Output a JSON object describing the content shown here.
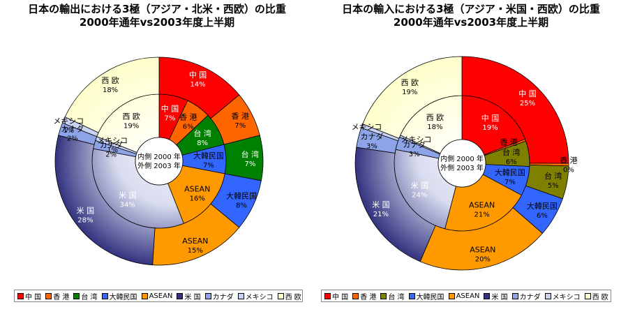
{
  "chart_data": [
    {
      "type": "pie",
      "title": "日本の輸出における3極（アジア・北米・西欧）の比重",
      "subtitle": "2000年通年vs2003年度上半期",
      "center_label": [
        "内側 2000 年",
        "外側 2003 年"
      ],
      "categories": [
        "中 国",
        "香 港",
        "台 湾",
        "大韓民国",
        "ASEAN",
        "米 国",
        "カナダ",
        "メキシコ",
        "西 欧"
      ],
      "colors": [
        "#ff0000",
        "#ff6600",
        "#008000",
        "#3366ff",
        "#ff9900",
        "#333380",
        "#8ea4e8",
        "#c9d2f3",
        "#ffffcc"
      ],
      "series": [
        {
          "name": "2000 年",
          "ring": "inner",
          "values": [
            7,
            6,
            8,
            7,
            16,
            34,
            2,
            1,
            19
          ],
          "labels": [
            "7%",
            "6%",
            "8%",
            "7%",
            "16%",
            "34%",
            "2%",
            "1%",
            "19%"
          ]
        },
        {
          "name": "2003 年",
          "ring": "outer",
          "values": [
            14,
            7,
            7,
            8,
            15,
            28,
            2,
            1,
            18
          ],
          "labels": [
            "14%",
            "7%",
            "7%",
            "8%",
            "15%",
            "28%",
            "2%",
            "1%",
            "18%"
          ]
        }
      ],
      "legend": {
        "entries": [
          "中 国",
          "香 港",
          "台 湾",
          "大韓民国",
          "ASEAN",
          "米 国",
          "カナダ",
          "メキシコ",
          "西 欧"
        ],
        "position": "bottom"
      }
    },
    {
      "type": "pie",
      "title": "日本の輸入における3極（アジア・米国・西欧）の比重",
      "subtitle": "2000年通年vs2003年度上半期",
      "center_label": [
        "内側 2000 年",
        "外側 2003 年"
      ],
      "categories": [
        "中 国",
        "香 港",
        "台 湾",
        "大韓民国",
        "ASEAN",
        "米 国",
        "カナダ",
        "メキシコ",
        "西 欧"
      ],
      "colors": [
        "#ff0000",
        "#ff6600",
        "#808000",
        "#3366ff",
        "#ff9900",
        "#333380",
        "#8ea4e8",
        "#c9d2f3",
        "#ffffcc"
      ],
      "series": [
        {
          "name": "2000 年",
          "ring": "inner",
          "values": [
            19,
            0.5,
            6,
            7,
            21,
            24,
            3,
            0.5,
            18
          ],
          "labels": [
            "19%",
            "",
            "6%",
            "7%",
            "21%",
            "24%",
            "3%",
            "",
            "18%"
          ]
        },
        {
          "name": "2003 年",
          "ring": "outer",
          "values": [
            25,
            0.4,
            5,
            6,
            20,
            21,
            3,
            0.6,
            19
          ],
          "labels": [
            "25%",
            "0%",
            "5%",
            "6%",
            "20%",
            "21%",
            "3%",
            "",
            "19%"
          ]
        }
      ],
      "legend": {
        "entries": [
          "中 国",
          "香 港",
          "台 湾",
          "大韓民国",
          "ASEAN",
          "米 国",
          "カナダ",
          "メキシコ",
          "西 欧"
        ],
        "position": "bottom"
      }
    }
  ]
}
